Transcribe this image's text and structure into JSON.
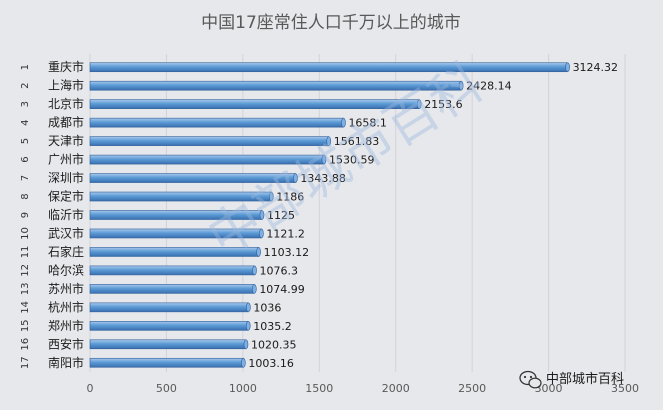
{
  "chart_data": {
    "type": "bar",
    "orientation": "horizontal",
    "title": "中国17座常住人口千万以上的城市",
    "ranks": [
      "1",
      "2",
      "3",
      "4",
      "5",
      "6",
      "7",
      "8",
      "9",
      "10",
      "11",
      "12",
      "13",
      "14",
      "15",
      "16",
      "17"
    ],
    "categories": [
      "重庆市",
      "上海市",
      "北京市",
      "成都市",
      "天津市",
      "广州市",
      "深圳市",
      "保定市",
      "临沂市",
      "武汉市",
      "石家庄",
      "哈尔滨",
      "苏州市",
      "杭州市",
      "郑州市",
      "西安市",
      "南阳市"
    ],
    "values": [
      3124.32,
      2428.14,
      2153.6,
      1658.1,
      1561.83,
      1530.59,
      1343.88,
      1186,
      1125,
      1121.2,
      1103.12,
      1076.3,
      1074.99,
      1036,
      1035.2,
      1020.35,
      1003.16
    ],
    "value_labels": [
      "3124.32",
      "2428.14",
      "2153.6",
      "1658.1",
      "1561.83",
      "1530.59",
      "1343.88",
      "1186",
      "1125",
      "1121.2",
      "1103.12",
      "1076.3",
      "1074.99",
      "1036",
      "1035.2",
      "1020.35",
      "1003.16"
    ],
    "x_ticks": [
      "0",
      "500",
      "1000",
      "1500",
      "2000",
      "2500",
      "3000",
      "3500"
    ],
    "xlim": [
      0,
      3500
    ],
    "grid": true,
    "bar_color": "#5b9bd5",
    "legend": "none"
  },
  "watermark": "中部城市百科",
  "brand_label": "中部城市百科"
}
